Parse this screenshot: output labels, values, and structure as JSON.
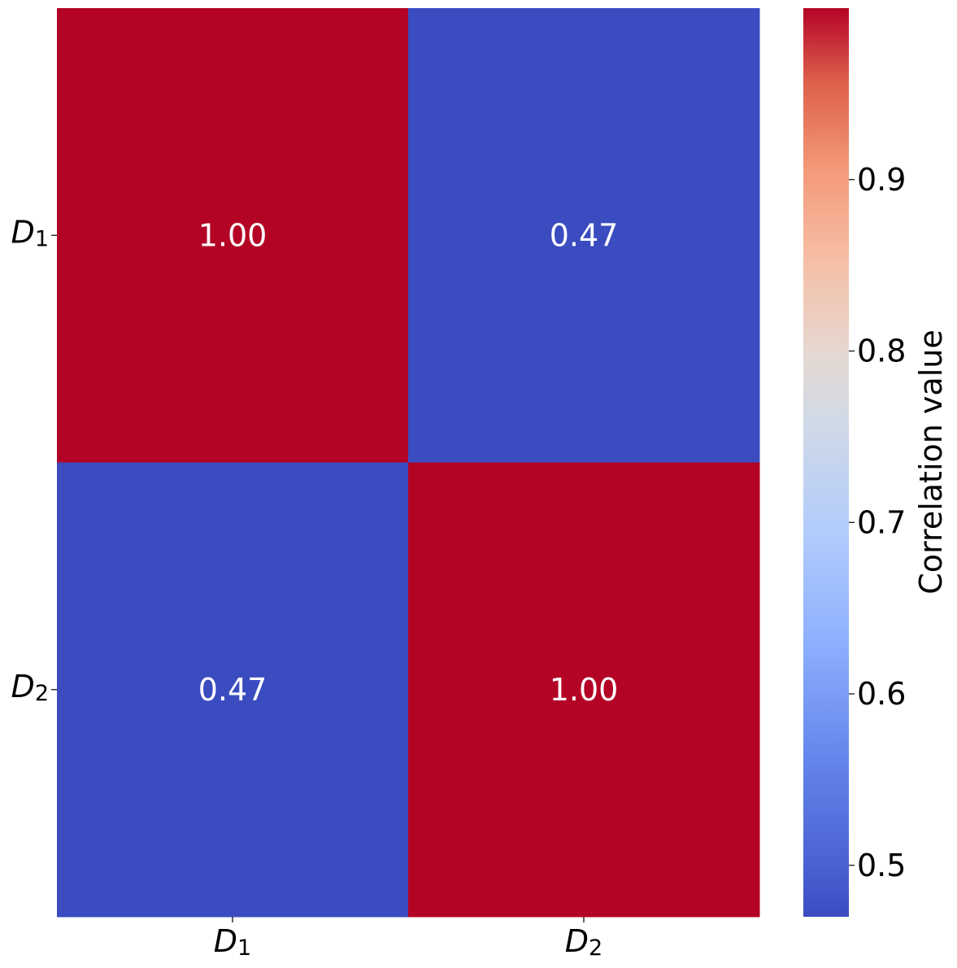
{
  "chart_data": {
    "type": "heatmap",
    "rows": [
      "D1",
      "D2"
    ],
    "columns": [
      "D1",
      "D2"
    ],
    "x_tick_labels": [
      {
        "base": "D",
        "sub": "1"
      },
      {
        "base": "D",
        "sub": "2"
      }
    ],
    "y_tick_labels": [
      {
        "base": "D",
        "sub": "1"
      },
      {
        "base": "D",
        "sub": "2"
      }
    ],
    "values": [
      [
        1.0,
        0.47
      ],
      [
        0.47,
        1.0
      ]
    ],
    "cell_labels": [
      [
        "1.00",
        "0.47"
      ],
      [
        "0.47",
        "1.00"
      ]
    ],
    "colormap": "coolwarm",
    "colors": {
      "low": "#3b4cc0",
      "high": "#b40426",
      "text": "#ffffff"
    },
    "colorbar": {
      "label": "Correlation value",
      "range": [
        0.47,
        1.0
      ],
      "ticks": [
        0.5,
        0.6,
        0.7,
        0.8,
        0.9
      ],
      "tick_labels": [
        "0.5",
        "0.6",
        "0.7",
        "0.8",
        "0.9"
      ]
    },
    "title": "",
    "xlabel": "",
    "ylabel": ""
  }
}
